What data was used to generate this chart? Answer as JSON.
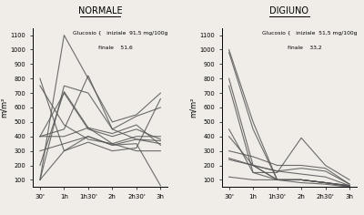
{
  "background_color": "#f0ede8",
  "fig_bg": "#f0ede8",
  "left_title": "NORMALE",
  "right_title": "DIGIUNO",
  "ylabel": "m/m²",
  "xtick_labels": [
    "30'",
    "1h",
    "1h30'",
    "2h",
    "2h30'",
    "3h"
  ],
  "ytick_vals": [
    100,
    200,
    300,
    400,
    500,
    600,
    700,
    800,
    900,
    1000,
    1100
  ],
  "ylim": [
    50,
    1150
  ],
  "left_annot_line1": "Glucosio {   iniziale  91,5 mg/100g",
  "left_annot_line2": "               finale    51,6",
  "right_annot_line1": "Glucosio {   iniziale  51,5 mg/100g",
  "right_annot_line2": "               finale    33,2",
  "left_series": [
    [
      100,
      1100,
      800,
      500,
      550,
      700
    ],
    [
      100,
      750,
      700,
      450,
      380,
      350
    ],
    [
      200,
      710,
      460,
      350,
      400,
      400
    ],
    [
      400,
      700,
      450,
      400,
      450,
      380
    ],
    [
      400,
      450,
      820,
      450,
      540,
      600
    ],
    [
      400,
      400,
      460,
      420,
      480,
      340
    ],
    [
      300,
      350,
      400,
      340,
      380,
      370
    ],
    [
      750,
      480,
      380,
      350,
      300,
      300
    ],
    [
      800,
      300,
      360,
      300,
      320,
      660
    ],
    [
      100,
      300,
      400,
      340,
      350,
      60
    ]
  ],
  "right_series": [
    [
      1000,
      500,
      100,
      100,
      80,
      60
    ],
    [
      980,
      450,
      100,
      100,
      80,
      60
    ],
    [
      800,
      200,
      100,
      100,
      80,
      60
    ],
    [
      750,
      150,
      100,
      100,
      80,
      55
    ],
    [
      450,
      150,
      150,
      390,
      200,
      100
    ],
    [
      400,
      200,
      160,
      180,
      160,
      70
    ],
    [
      300,
      260,
      200,
      200,
      180,
      70
    ],
    [
      250,
      200,
      100,
      100,
      80,
      55
    ],
    [
      240,
      200,
      160,
      140,
      120,
      60
    ],
    [
      120,
      100,
      100,
      80,
      70,
      50
    ]
  ],
  "line_color": "#555555",
  "line_width": 0.8
}
